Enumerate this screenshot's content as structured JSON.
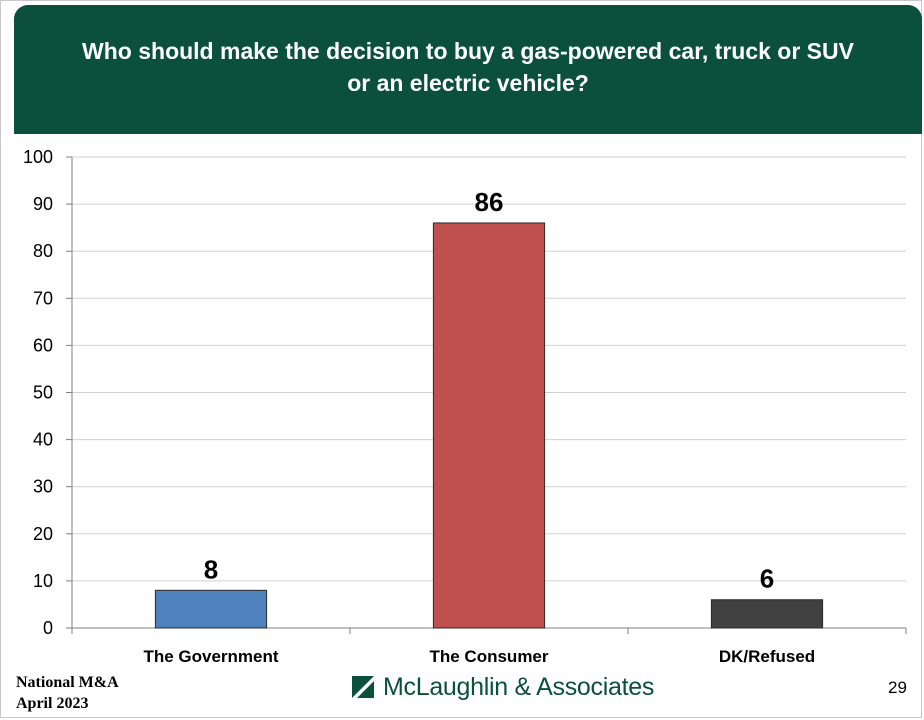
{
  "title": "Who should make the decision to buy a gas-powered car, truck or SUV or an electric vehicle?",
  "footer": {
    "line1": "National M&A",
    "line2": "April 2023",
    "brand": "McLaughlin & Associates",
    "page_number": "29"
  },
  "chart_data": {
    "type": "bar",
    "categories": [
      "The Government",
      "The Consumer",
      "DK/Refused"
    ],
    "values": [
      8,
      86,
      6
    ],
    "data_labels": [
      "8",
      "86",
      "6"
    ],
    "colors": [
      "#4f81bd",
      "#c0504d",
      "#404040"
    ],
    "ylim": [
      0,
      100
    ],
    "yticks": [
      "0",
      "10",
      "20",
      "30",
      "40",
      "50",
      "60",
      "70",
      "80",
      "90",
      "100"
    ],
    "grid": true,
    "legend": "none"
  },
  "colors": {
    "banner": "#0a503b",
    "brand": "#0a503b",
    "gridline": "#d0d0d0"
  }
}
